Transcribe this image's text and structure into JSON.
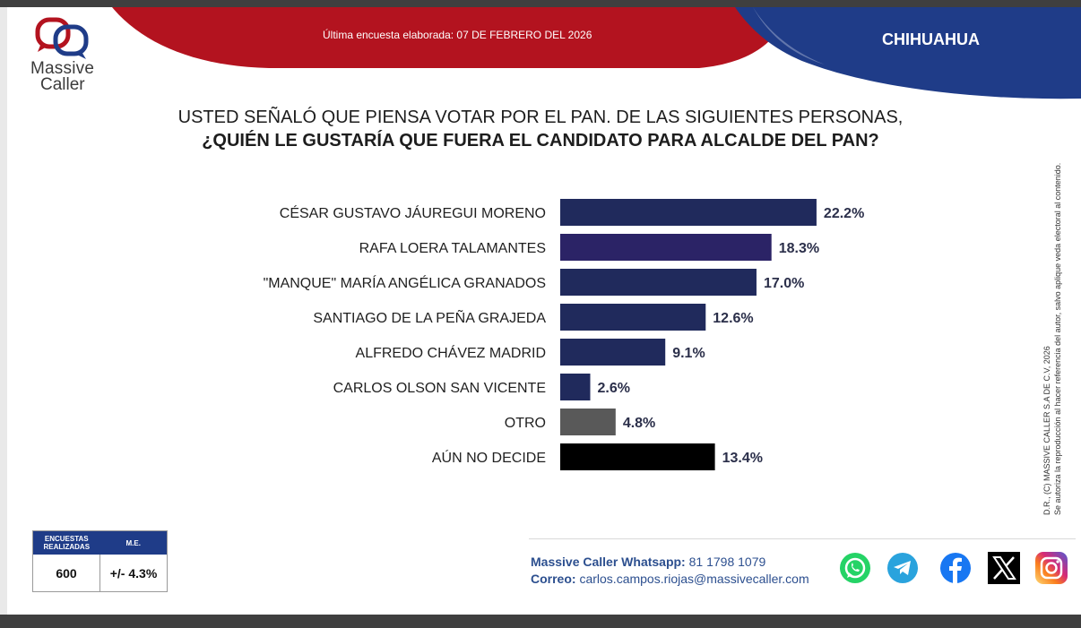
{
  "header": {
    "logo_line1": "Massive",
    "logo_line2": "Caller",
    "survey_date": "Última encuesta elaborada: 07 DE FEBRERO DEL 2026",
    "state": "CHIHUAHUA"
  },
  "question": {
    "line1": "USTED SEÑALÓ QUE PIENSA VOTAR POR EL PAN. DE LAS SIGUIENTES PERSONAS,",
    "line2": "¿QUIÉN LE GUSTARÍA QUE FUERA EL CANDIDATO PARA ALCALDE DEL PAN?"
  },
  "chart_data": {
    "type": "bar",
    "orientation": "horizontal",
    "categories": [
      "CÉSAR GUSTAVO JÁUREGUI MORENO",
      "RAFA LOERA TALAMANTES",
      "\"MANQUE\" MARÍA ANGÉLICA GRANADOS",
      "SANTIAGO DE LA PEÑA GRAJEDA",
      "ALFREDO CHÁVEZ MADRID",
      "CARLOS OLSON SAN VICENTE",
      "OTRO",
      "AÚN NO DECIDE"
    ],
    "values": [
      22.2,
      18.3,
      17.0,
      12.6,
      9.1,
      2.6,
      4.8,
      13.4
    ],
    "value_labels": [
      "22.2%",
      "18.3%",
      "17.0%",
      "12.6%",
      "9.1%",
      "2.6%",
      "4.8%",
      "13.4%"
    ],
    "colors": [
      "#202a5c",
      "#2b2366",
      "#202a5c",
      "#202a5c",
      "#202a5c",
      "#202a5c",
      "#595959",
      "#000000"
    ],
    "grid": false,
    "legend": "none"
  },
  "stats": {
    "surveys_label": "ENCUESTAS REALIZADAS",
    "me_label": "M.E.",
    "surveys_value": "600",
    "me_value": "+/- 4.3%"
  },
  "contact": {
    "whatsapp_label": "Massive Caller Whatsapp:",
    "whatsapp_value": "81 1798 1079",
    "email_label": "Correo:",
    "email_value": "carlos.campos.riojas@massivecaller.com"
  },
  "copyright": {
    "line1": "D.R., (C) MASSIVE CALLER S.A DE C.V, 2026",
    "line2": "Se autoriza la reproducción al hacer referencia del autor, salvo aplique veda electoral al contenido."
  },
  "social_icons": [
    "whatsapp-icon",
    "telegram-icon",
    "facebook-icon",
    "x-icon",
    "instagram-icon"
  ],
  "colors": {
    "brand_red": "#b3131f",
    "brand_navy": "#1f3c88",
    "bar_navy": "#202a5c"
  }
}
